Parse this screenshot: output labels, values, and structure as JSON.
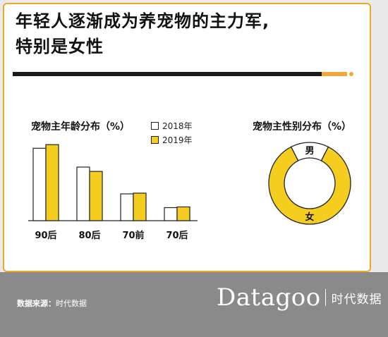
{
  "title_lines": [
    "年轻人逐渐成为养宠物的主力军,",
    "特别是女性"
  ],
  "age_chart_title": "宠物主年龄分布（%）",
  "gender_chart_title": "宠物主性别分布（%）",
  "source": {
    "label": "数据来源：",
    "value": "时代数据"
  },
  "logo": {
    "word": "Datagoo",
    "cn": "时代数据"
  },
  "colors": {
    "year2018_fill": "#ffffff",
    "year2019_fill": "#f5cd1f",
    "outline": "#222222",
    "card_border": "#e9a826",
    "footer": "#8a8a8a",
    "accent": "#f0a73b"
  },
  "chart_data": [
    {
      "type": "bar",
      "title": "宠物主年龄分布（%）",
      "categories": [
        "90后",
        "80后",
        "70前",
        "70后"
      ],
      "series": [
        {
          "name": "2018年",
          "values": [
            100,
            74,
            37,
            18
          ]
        },
        {
          "name": "2019年",
          "values": [
            105,
            68,
            38,
            19
          ]
        }
      ],
      "ylim": [
        0,
        110
      ],
      "legend": "top-right",
      "grid": false
    },
    {
      "type": "pie",
      "title": "宠物主性别分布（%）",
      "labels": [
        "女",
        "男"
      ],
      "values": [
        85,
        15
      ],
      "donut": true
    }
  ]
}
